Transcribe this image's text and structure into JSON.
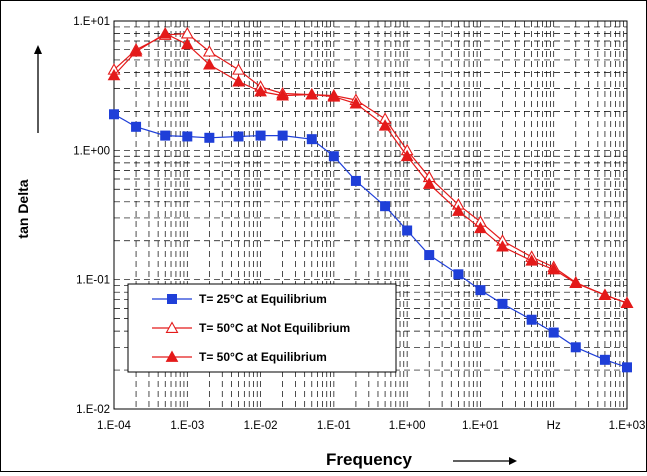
{
  "chart_data": {
    "type": "line",
    "x_scale": "log",
    "y_scale": "log",
    "xlim": [
      0.0001,
      1000
    ],
    "ylim": [
      0.01,
      10
    ],
    "grid": true,
    "legend_position": "bottom-left",
    "xlabel": "Frequency",
    "ylabel": "tan Delta",
    "x_ticks": [
      "1.E-04",
      "1.E-03",
      "1.E-02",
      "1.E-01",
      "1.E+00",
      "1.E+01",
      "Hz",
      "1.E+03"
    ],
    "y_ticks": [
      "1.E-02",
      "1.E-01",
      "1.E+00",
      "1.E+01"
    ],
    "x": [
      0.0001,
      0.0002,
      0.0005,
      0.001,
      0.002,
      0.005,
      0.01,
      0.02,
      0.05,
      0.1,
      0.2,
      0.5,
      1,
      2,
      5,
      10,
      20,
      50,
      100,
      200,
      500,
      1000
    ],
    "series": [
      {
        "name": "T= 25°C at Equilibrium",
        "color": "#1f3fd8",
        "marker": "square",
        "values": [
          1.9,
          1.52,
          1.3,
          1.28,
          1.25,
          1.28,
          1.3,
          1.3,
          1.22,
          0.9,
          0.58,
          0.37,
          0.24,
          0.155,
          0.11,
          0.083,
          0.065,
          0.049,
          0.039,
          0.03,
          0.024,
          0.021
        ]
      },
      {
        "name": "T= 50°C at Not Equilibrium",
        "color": "#e41a1a",
        "marker": "triangle-open",
        "values": [
          4.2,
          6.0,
          7.8,
          8.0,
          5.8,
          4.2,
          3.1,
          2.75,
          2.7,
          2.65,
          2.45,
          1.75,
          1.0,
          0.62,
          0.38,
          0.28,
          0.2,
          0.15,
          0.125,
          0.095,
          0.076,
          0.066
        ]
      },
      {
        "name": "T= 50°C at Equilibrium",
        "color": "#e41a1a",
        "marker": "triangle-filled",
        "values": [
          3.8,
          5.8,
          8.0,
          6.6,
          4.6,
          3.4,
          2.85,
          2.65,
          2.7,
          2.6,
          2.3,
          1.55,
          0.9,
          0.55,
          0.34,
          0.25,
          0.18,
          0.14,
          0.12,
          0.094,
          0.076,
          0.066
        ]
      }
    ]
  }
}
